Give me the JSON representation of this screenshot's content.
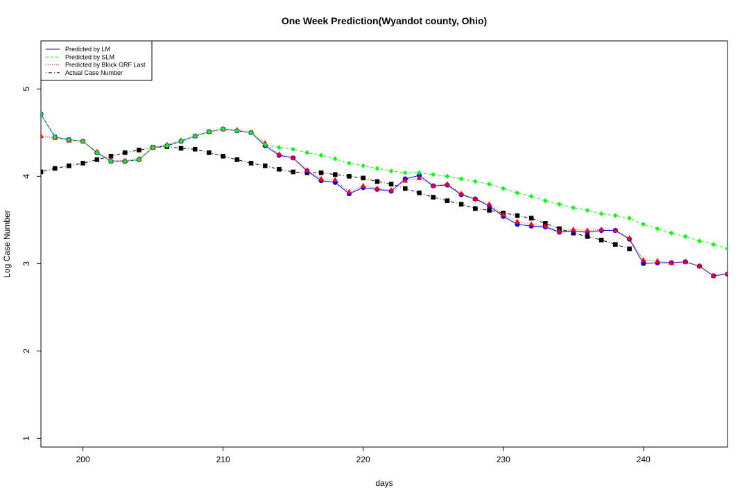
{
  "chart_data": {
    "type": "line",
    "title": "One Week Prediction(Wyandot county, Ohio)",
    "xlabel": "days",
    "ylabel": "Log Case Number",
    "xlim": [
      197,
      246
    ],
    "ylim": [
      0.9,
      5.55
    ],
    "xticks": [
      200,
      210,
      220,
      230,
      240
    ],
    "yticks": [
      1,
      2,
      3,
      4,
      5
    ],
    "grid": false,
    "legend_position": "top-left",
    "series": [
      {
        "name": "Predicted by LM",
        "color": "#0000ff",
        "marker": "circle",
        "line": "solid",
        "x": [
          197,
          198,
          199,
          200,
          201,
          202,
          203,
          204,
          205,
          206,
          207,
          208,
          209,
          210,
          211,
          212,
          213,
          214,
          215,
          216,
          217,
          218,
          219,
          220,
          221,
          222,
          223,
          224,
          225,
          226,
          227,
          228,
          229,
          230,
          231,
          232,
          233,
          234,
          235,
          236,
          237,
          238,
          239,
          240,
          241,
          242,
          243,
          244,
          245,
          246
        ],
        "y": [
          4.71,
          4.45,
          4.42,
          4.4,
          4.27,
          4.17,
          4.17,
          4.19,
          4.33,
          4.35,
          4.4,
          4.46,
          4.51,
          4.54,
          4.52,
          4.5,
          4.35,
          4.24,
          4.21,
          4.06,
          3.95,
          3.93,
          3.8,
          3.87,
          3.85,
          3.83,
          3.97,
          4.01,
          3.89,
          3.9,
          3.79,
          3.74,
          3.66,
          3.54,
          3.45,
          3.43,
          3.42,
          3.36,
          3.37,
          3.36,
          3.38,
          3.38,
          3.28,
          3.0,
          3.01,
          3.01,
          3.02,
          2.97,
          2.86,
          2.88
        ]
      },
      {
        "name": "Predicted by SLM",
        "color": "#00ff00",
        "marker": "diamond",
        "line": "dashed",
        "x": [
          197,
          198,
          199,
          200,
          201,
          202,
          203,
          204,
          205,
          206,
          207,
          208,
          209,
          210,
          211,
          212,
          213,
          214,
          215,
          216,
          217,
          218,
          219,
          220,
          221,
          222,
          223,
          224,
          225,
          226,
          227,
          228,
          229,
          230,
          231,
          232,
          233,
          234,
          235,
          236,
          237,
          238,
          239,
          240,
          241,
          242,
          243,
          244,
          245,
          246
        ],
        "y": [
          4.71,
          4.45,
          4.42,
          4.4,
          4.27,
          4.17,
          4.17,
          4.19,
          4.33,
          4.35,
          4.4,
          4.46,
          4.51,
          4.54,
          4.52,
          4.5,
          4.36,
          4.33,
          4.31,
          4.27,
          4.24,
          4.2,
          4.15,
          4.12,
          4.09,
          4.06,
          4.04,
          4.04,
          4.02,
          4.0,
          3.97,
          3.94,
          3.91,
          3.86,
          3.81,
          3.77,
          3.72,
          3.68,
          3.64,
          3.61,
          3.57,
          3.55,
          3.52,
          3.45,
          3.4,
          3.35,
          3.31,
          3.26,
          3.22,
          3.17
        ]
      },
      {
        "name": "Predicted by Block GRF Last",
        "color": "#ff0000",
        "marker": "triangle",
        "line": "dotted",
        "x": [
          197,
          198,
          199,
          200,
          201,
          202,
          203,
          204,
          205,
          206,
          207,
          208,
          209,
          210,
          211,
          212,
          213,
          214,
          215,
          216,
          217,
          218,
          219,
          220,
          221,
          222,
          223,
          224,
          225,
          226,
          227,
          228,
          229,
          230,
          231,
          232,
          233,
          234,
          235,
          236,
          237,
          238,
          239,
          240,
          241,
          242,
          243,
          244,
          245,
          246
        ],
        "y": [
          4.46,
          4.44,
          4.41,
          4.4,
          4.28,
          4.18,
          4.18,
          4.2,
          4.33,
          4.36,
          4.41,
          4.46,
          4.51,
          4.54,
          4.53,
          4.5,
          4.38,
          4.25,
          4.21,
          4.07,
          3.97,
          3.96,
          3.82,
          3.89,
          3.86,
          3.84,
          3.95,
          3.98,
          3.89,
          3.91,
          3.8,
          3.74,
          3.68,
          3.56,
          3.48,
          3.45,
          3.43,
          3.37,
          3.39,
          3.38,
          3.39,
          3.38,
          3.29,
          3.04,
          3.03,
          3.01,
          3.02,
          2.97,
          2.86,
          2.89
        ]
      },
      {
        "name": "Actual Case Number",
        "color": "#000000",
        "marker": "square",
        "line": "dotdash",
        "x": [
          197,
          198,
          199,
          200,
          201,
          202,
          203,
          204,
          205,
          206,
          207,
          208,
          209,
          210,
          211,
          212,
          213,
          214,
          215,
          216,
          217,
          218,
          219,
          220,
          221,
          222,
          223,
          224,
          225,
          226,
          227,
          228,
          229,
          230,
          231,
          232,
          233,
          234,
          235,
          236,
          237,
          238,
          239
        ],
        "y": [
          4.05,
          4.09,
          4.12,
          4.15,
          4.19,
          4.23,
          4.27,
          4.3,
          4.33,
          4.34,
          4.32,
          4.31,
          4.27,
          4.23,
          4.19,
          4.15,
          4.12,
          4.08,
          4.05,
          4.04,
          4.04,
          4.02,
          4.0,
          3.98,
          3.94,
          3.91,
          3.86,
          3.81,
          3.76,
          3.72,
          3.68,
          3.63,
          3.61,
          3.58,
          3.55,
          3.52,
          3.46,
          3.4,
          3.35,
          3.31,
          3.27,
          3.22,
          3.17
        ]
      }
    ]
  }
}
